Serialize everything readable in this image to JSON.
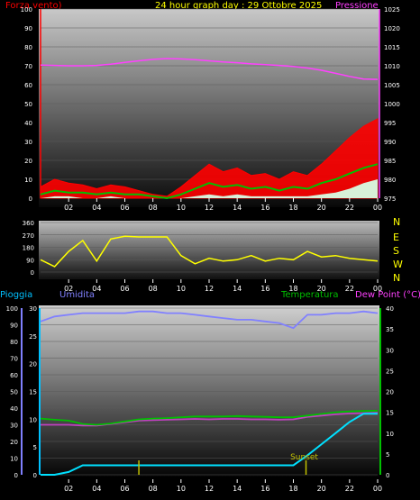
{
  "header": {
    "left_label": "Forza vento)",
    "center_label": "24 hour graph day : 29 Ottobre 2025",
    "right_label": "Pressione"
  },
  "colors": {
    "wind_label": "#ff0000",
    "title": "#ffff00",
    "pressure": "#ff40ff",
    "wind_gust": "#ff0000",
    "wind_avg": "#00c000",
    "wind_low": "#d8f0d8",
    "direction": "#ffff00",
    "humidity": "#8080ff",
    "rain_axis": "#00c0ff",
    "rain": "#00e0ff",
    "temperature": "#00c000",
    "temp_axis": "#00c000",
    "dewpoint": "#c040c0",
    "sunrise_sunset": "#c0c000",
    "axis_text": "#ffffff"
  },
  "chart_data": [
    {
      "type": "line",
      "title": "24 hour graph day : 29 Ottobre 2025",
      "ylabel_left": "Forza vento)",
      "ylabel_right": "Pressione",
      "x_ticks": [
        "02",
        "04",
        "06",
        "08",
        "10",
        "12",
        "14",
        "16",
        "18",
        "20",
        "22",
        "00"
      ],
      "y_left_ticks": [
        0,
        10,
        20,
        30,
        40,
        50,
        60,
        70,
        80,
        90,
        100
      ],
      "y_right_ticks": [
        975,
        980,
        985,
        990,
        995,
        1000,
        1005,
        1010,
        1015,
        1020,
        1025
      ],
      "ylim_left": [
        0,
        100
      ],
      "ylim_right": [
        975,
        1025
      ],
      "x": [
        0,
        1,
        2,
        3,
        4,
        5,
        6,
        7,
        8,
        9,
        10,
        11,
        12,
        13,
        14,
        15,
        16,
        17,
        18,
        19,
        20,
        21,
        22,
        23,
        24
      ],
      "series": [
        {
          "name": "Pressione",
          "axis": "right",
          "values": [
            1010.2,
            1010.1,
            1010.0,
            1010.0,
            1010.1,
            1010.4,
            1010.9,
            1011.3,
            1011.7,
            1011.9,
            1011.8,
            1011.6,
            1011.3,
            1011.0,
            1010.8,
            1010.5,
            1010.3,
            1010.1,
            1009.8,
            1009.4,
            1008.8,
            1008.0,
            1007.2,
            1006.5,
            1006.4
          ]
        },
        {
          "name": "gust",
          "axis": "left",
          "values": [
            6,
            10,
            8,
            7,
            5,
            7,
            6,
            4,
            2,
            1,
            6,
            12,
            18,
            14,
            16,
            12,
            13,
            10,
            14,
            12,
            18,
            25,
            32,
            38,
            42
          ]
        },
        {
          "name": "average",
          "axis": "left",
          "values": [
            2,
            4,
            3,
            3,
            2,
            3,
            2,
            2,
            1,
            0,
            2,
            5,
            8,
            6,
            7,
            5,
            6,
            4,
            6,
            5,
            8,
            10,
            13,
            16,
            18
          ]
        },
        {
          "name": "low",
          "axis": "left",
          "values": [
            0,
            1,
            1,
            0,
            0,
            1,
            0,
            0,
            0,
            0,
            0,
            1,
            2,
            1,
            2,
            1,
            1,
            1,
            1,
            1,
            2,
            3,
            5,
            8,
            10
          ]
        }
      ]
    },
    {
      "type": "scatter",
      "x_ticks": [
        "02",
        "04",
        "06",
        "08",
        "10",
        "12",
        "14",
        "16",
        "18",
        "20",
        "22",
        "00"
      ],
      "y_left_ticks": [
        0,
        90,
        180,
        270,
        360
      ],
      "y_right_labels": [
        "N",
        "W",
        "S",
        "E",
        "N"
      ],
      "ylim": [
        0,
        360
      ],
      "x": [
        0,
        1,
        2,
        3,
        4,
        5,
        6,
        7,
        8,
        9,
        10,
        11,
        12,
        13,
        14,
        15,
        16,
        17,
        18,
        19,
        20,
        21,
        22,
        23,
        24
      ],
      "series": [
        {
          "name": "direction",
          "values": [
            90,
            40,
            150,
            230,
            80,
            240,
            260,
            255,
            255,
            255,
            120,
            60,
            100,
            80,
            90,
            120,
            80,
            100,
            90,
            150,
            110,
            120,
            100,
            90,
            80
          ]
        }
      ]
    },
    {
      "type": "line",
      "ylabel_left_outer": "Pioggia",
      "ylabel_left_inner": "Umidita",
      "ylabel_right_inner": "Temperatura",
      "ylabel_right_outer": "Dew Point (°C)",
      "x_ticks": [
        "02",
        "04",
        "06",
        "08",
        "10",
        "12",
        "14",
        "16",
        "18",
        "20",
        "22",
        "00"
      ],
      "y_humidity_ticks": [
        0,
        10,
        20,
        30,
        40,
        50,
        60,
        70,
        80,
        90,
        100
      ],
      "y_rain_ticks": [
        0,
        5,
        10,
        15,
        20,
        25,
        30
      ],
      "y_temp_ticks": [
        0,
        5,
        10,
        15,
        20,
        25,
        30,
        35,
        40
      ],
      "ylim_humidity": [
        0,
        100
      ],
      "ylim_rain": [
        0,
        30
      ],
      "ylim_temp": [
        0,
        40
      ],
      "annotation": "Sunset",
      "x": [
        0,
        1,
        2,
        3,
        4,
        5,
        6,
        7,
        8,
        9,
        10,
        11,
        12,
        13,
        14,
        15,
        16,
        17,
        18,
        19,
        20,
        21,
        22,
        23,
        24
      ],
      "series": [
        {
          "name": "Umidita",
          "axis": "humidity",
          "values": [
            92,
            95,
            96,
            97,
            97,
            97,
            97,
            98,
            98,
            97,
            97,
            96,
            95,
            94,
            93,
            93,
            92,
            91,
            88,
            96,
            96,
            97,
            97,
            98,
            97
          ]
        },
        {
          "name": "Pioggia",
          "axis": "rain",
          "values": [
            0,
            0,
            0.5,
            1.7,
            1.7,
            1.7,
            1.7,
            1.7,
            1.7,
            1.7,
            1.7,
            1.7,
            1.7,
            1.7,
            1.7,
            1.7,
            1.7,
            1.7,
            1.7,
            3.5,
            5.5,
            7.5,
            9.5,
            11,
            11
          ]
        },
        {
          "name": "Temperatura",
          "axis": "temp",
          "values": [
            13.5,
            13.2,
            13.0,
            12.2,
            12.0,
            12.3,
            12.8,
            13.3,
            13.5,
            13.6,
            13.8,
            14.0,
            14.0,
            14.0,
            14.1,
            14.0,
            13.9,
            13.8,
            13.8,
            14.2,
            14.6,
            15.0,
            15.2,
            15.3,
            15.4
          ]
        },
        {
          "name": "Dew Point",
          "axis": "temp",
          "values": [
            12.0,
            12.0,
            12.0,
            11.8,
            11.8,
            12.2,
            12.6,
            13.0,
            13.1,
            13.2,
            13.3,
            13.4,
            13.3,
            13.4,
            13.4,
            13.3,
            13.3,
            13.2,
            13.3,
            13.9,
            14.2,
            14.5,
            14.7,
            14.8,
            14.9
          ]
        }
      ],
      "markers": [
        {
          "label": "sunrise",
          "x": 7.0
        },
        {
          "label": "sunset",
          "x": 18.9
        }
      ]
    }
  ]
}
